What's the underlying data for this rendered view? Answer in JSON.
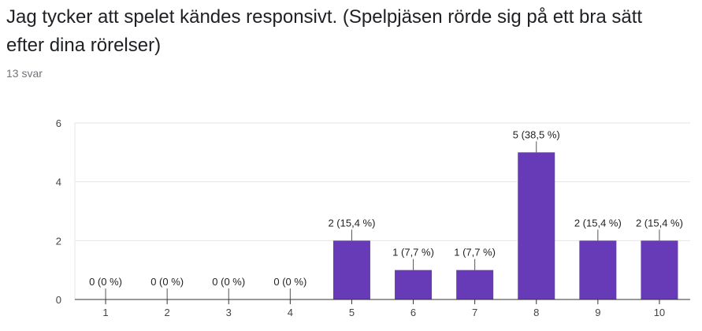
{
  "question": {
    "title": "Jag tycker att spelet kändes responsivt. (Spelpjäsen rörde sig på ett bra sätt efter dina rörelser)",
    "response_count": "13 svar"
  },
  "colors": {
    "bar": "#673ab7",
    "grid": "#e6e6e6",
    "axis": "#333333"
  },
  "chart_data": {
    "type": "bar",
    "categories": [
      "1",
      "2",
      "3",
      "4",
      "5",
      "6",
      "7",
      "8",
      "9",
      "10"
    ],
    "values": [
      0,
      0,
      0,
      0,
      2,
      1,
      1,
      5,
      2,
      2
    ],
    "data_labels": [
      "0 (0 %)",
      "0 (0 %)",
      "0 (0 %)",
      "0 (0 %)",
      "2 (15,4 %)",
      "1 (7,7 %)",
      "1 (7,7 %)",
      "5 (38,5 %)",
      "2 (15,4 %)",
      "2 (15,4 %)"
    ],
    "yticks": [
      "0",
      "2",
      "4",
      "6"
    ],
    "ylim": [
      0,
      6
    ],
    "grid": true,
    "legend": "none"
  }
}
